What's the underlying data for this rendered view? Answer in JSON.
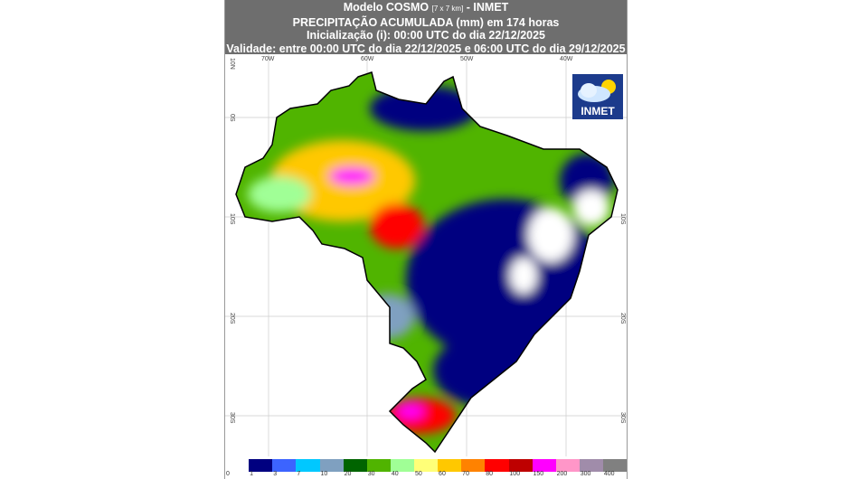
{
  "header": {
    "line1_a": "Modelo COSMO ",
    "line1_res": "[7 x 7 km]",
    "line1_b": " - INMET",
    "line2": "PRECIPITAÇÃO ACUMULADA (mm) em 174 horas",
    "line3": "Inicialização (i): 00:00 UTC do dia 22/12/2025",
    "line4": "Validade: entre 00:00 UTC do dia 22/12/2025 e 06:00 UTC do dia 29/12/2025"
  },
  "axes": {
    "lon": [
      "70W",
      "60W",
      "50W",
      "40W"
    ],
    "lat": [
      "10N",
      "0S",
      "10S",
      "20S",
      "30S"
    ]
  },
  "logo": {
    "text": "INMET",
    "icon": "cloud-sun-icon"
  },
  "legend": {
    "colors": [
      "#ffffff",
      "#000080",
      "#3c64ff",
      "#00c8ff",
      "#7fa0c0",
      "#006400",
      "#50b400",
      "#a0ff96",
      "#ffff78",
      "#ffc800",
      "#ff8200",
      "#ff0000",
      "#be0000",
      "#ff00ff",
      "#ff96c8",
      "#a08caa",
      "#808080"
    ],
    "labels": [
      "0",
      "1",
      "3",
      "7",
      "10",
      "20",
      "30",
      "40",
      "50",
      "60",
      "70",
      "80",
      "100",
      "150",
      "200",
      "300",
      "400"
    ]
  }
}
